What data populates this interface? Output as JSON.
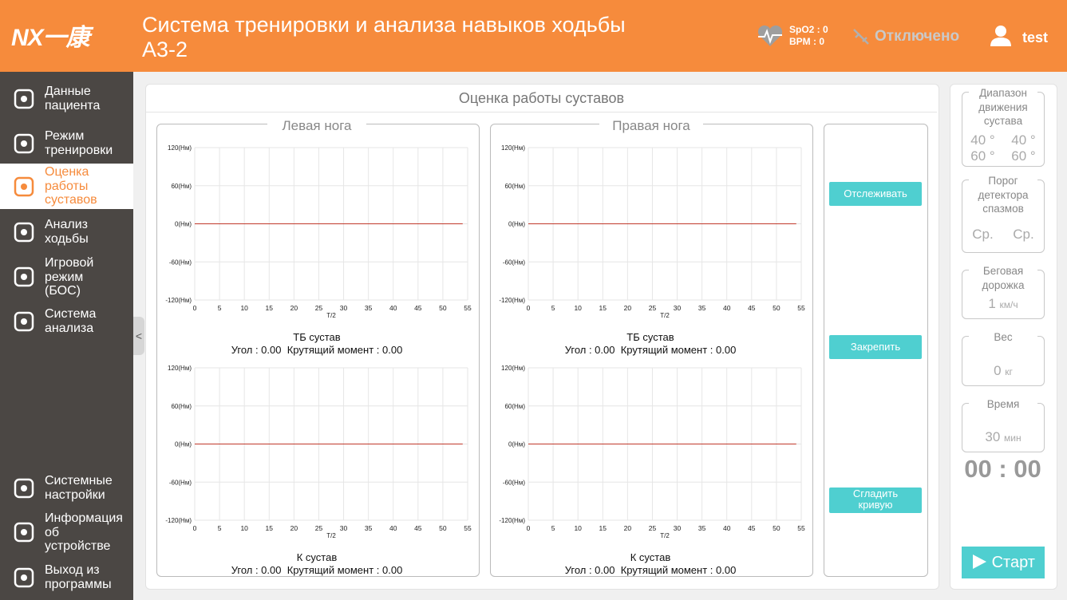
{
  "header": {
    "logo": "NX一康",
    "title_lines": [
      "Система тренировки и анализа навыков ходьбы",
      "А3-2"
    ],
    "spo2": "SpO2 : 0",
    "bpm": "BPM : 0",
    "status": "Отключено",
    "user": "test"
  },
  "sidebar": {
    "items": [
      [
        "Данные",
        "пациента"
      ],
      [
        "Режим",
        "тренировки"
      ],
      [
        "Оценка",
        "работы",
        "суставов"
      ],
      [
        "Анализ",
        "ходьбы"
      ],
      [
        "Игровой",
        "режим",
        "(БОС)"
      ],
      [
        "Система",
        "анализа"
      ]
    ],
    "bottom_items": [
      [
        "Системные",
        "настройки"
      ],
      [
        "Информация",
        "об",
        "устройстве"
      ],
      [
        "Выход из",
        "программы"
      ]
    ],
    "collapse": "<"
  },
  "panel": {
    "title": "Оценка работы суставов",
    "legs": [
      {
        "title": "Левая нога",
        "charts": [
          {
            "type": "line",
            "caption": "ТБ сустав",
            "readout": "Угол : 0.00  Крутящий момент : 0.00",
            "xlabel": "T/2",
            "xlim": [
              0,
              55
            ],
            "ylim": [
              -120,
              120
            ],
            "xticks": [
              0,
              5,
              10,
              15,
              20,
              25,
              30,
              35,
              40,
              45,
              50,
              55
            ],
            "yticks": [
              {
                "value": 120,
                "label": "120(Нм)"
              },
              {
                "value": 60,
                "label": "60(Нм)"
              },
              {
                "value": 0,
                "label": "0(Нм)"
              },
              {
                "value": -60,
                "label": "-60(Нм)"
              },
              {
                "value": -120,
                "label": "-120(Нм)"
              }
            ],
            "grid": true,
            "series": [
              {
                "color": "#c0392b",
                "x": [
                  0,
                  54
                ],
                "values": [
                  0,
                  0
                ]
              }
            ]
          },
          {
            "type": "line",
            "caption": "К сустав",
            "readout": "Угол : 0.00  Крутящий момент : 0.00",
            "xlabel": "T/2",
            "xlim": [
              0,
              55
            ],
            "ylim": [
              -120,
              120
            ],
            "xticks": [
              0,
              5,
              10,
              15,
              20,
              25,
              30,
              35,
              40,
              45,
              50,
              55
            ],
            "yticks": [
              {
                "value": 120,
                "label": "120(Нм)"
              },
              {
                "value": 60,
                "label": "60(Нм)"
              },
              {
                "value": 0,
                "label": "0(Нм)"
              },
              {
                "value": -60,
                "label": "-60(Нм)"
              },
              {
                "value": -120,
                "label": "-120(Нм)"
              }
            ],
            "grid": true,
            "series": [
              {
                "color": "#c0392b",
                "x": [
                  0,
                  54
                ],
                "values": [
                  0,
                  0
                ]
              }
            ]
          }
        ]
      },
      {
        "title": "Правая нога",
        "charts": [
          {
            "type": "line",
            "caption": "ТБ сустав",
            "readout": "Угол : 0.00  Крутящий момент : 0.00",
            "xlabel": "T/2",
            "xlim": [
              0,
              55
            ],
            "ylim": [
              -120,
              120
            ],
            "xticks": [
              0,
              5,
              10,
              15,
              20,
              25,
              30,
              35,
              40,
              45,
              50,
              55
            ],
            "yticks": [
              {
                "value": 120,
                "label": "120(Нм)"
              },
              {
                "value": 60,
                "label": "60(Нм)"
              },
              {
                "value": 0,
                "label": "0(Нм)"
              },
              {
                "value": -60,
                "label": "-60(Нм)"
              },
              {
                "value": -120,
                "label": "-120(Нм)"
              }
            ],
            "grid": true,
            "series": [
              {
                "color": "#c0392b",
                "x": [
                  0,
                  54
                ],
                "values": [
                  0,
                  0
                ]
              }
            ]
          },
          {
            "type": "line",
            "caption": "К сустав",
            "readout": "Угол : 0.00  Крутящий момент : 0.00",
            "xlabel": "T/2",
            "xlim": [
              0,
              55
            ],
            "ylim": [
              -120,
              120
            ],
            "xticks": [
              0,
              5,
              10,
              15,
              20,
              25,
              30,
              35,
              40,
              45,
              50,
              55
            ],
            "yticks": [
              {
                "value": 120,
                "label": "120(Нм)"
              },
              {
                "value": 60,
                "label": "60(Нм)"
              },
              {
                "value": 0,
                "label": "0(Нм)"
              },
              {
                "value": -60,
                "label": "-60(Нм)"
              },
              {
                "value": -120,
                "label": "-120(Нм)"
              }
            ],
            "grid": true,
            "series": [
              {
                "color": "#c0392b",
                "x": [
                  0,
                  54
                ],
                "values": [
                  0,
                  0
                ]
              }
            ]
          }
        ]
      }
    ],
    "buttons": [
      [
        "Отслеживать"
      ],
      [
        "Закрепить"
      ],
      [
        "Сгладить",
        "кривую"
      ]
    ]
  },
  "settings": [
    {
      "label": [
        "Диапазон",
        "движения",
        "сустава"
      ],
      "rows": [
        [
          "40 °",
          "40 °"
        ],
        [
          "60 °",
          "60 °"
        ]
      ]
    },
    {
      "label": [
        "Порог",
        "детектора",
        "спазмов"
      ],
      "rows": [
        [
          "Ср.",
          "Ср."
        ]
      ]
    },
    {
      "label": [
        "Беговая",
        "дорожка"
      ],
      "value": "1",
      "unit": "км/ч"
    },
    {
      "label": [
        "Вес"
      ],
      "value": "0",
      "unit": "кг"
    },
    {
      "label": [
        "Время"
      ],
      "value": "30",
      "unit": "мин"
    }
  ],
  "timer": "00 : 00",
  "start": "Старт"
}
